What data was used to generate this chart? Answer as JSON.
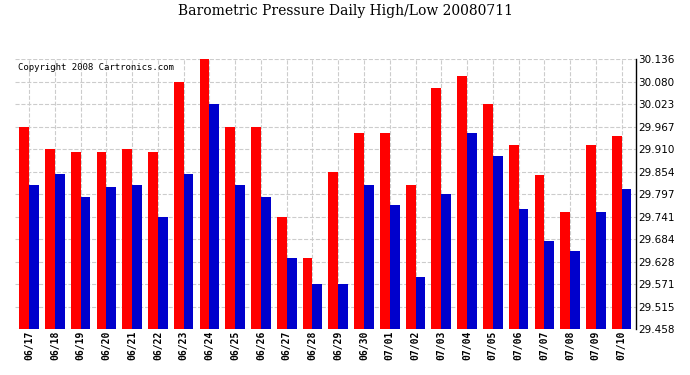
{
  "title": "Barometric Pressure Daily High/Low 20080711",
  "copyright": "Copyright 2008 Cartronics.com",
  "dates": [
    "06/17",
    "06/18",
    "06/19",
    "06/20",
    "06/21",
    "06/22",
    "06/23",
    "06/24",
    "06/25",
    "06/26",
    "06/27",
    "06/28",
    "06/29",
    "06/30",
    "07/01",
    "07/02",
    "07/03",
    "07/04",
    "07/05",
    "07/06",
    "07/07",
    "07/08",
    "07/09",
    "07/10"
  ],
  "highs": [
    29.967,
    29.91,
    29.903,
    29.903,
    29.91,
    29.903,
    30.08,
    30.136,
    29.967,
    29.967,
    29.741,
    29.638,
    29.854,
    29.95,
    29.95,
    29.82,
    30.063,
    30.093,
    30.023,
    29.92,
    29.845,
    29.752,
    29.92,
    29.943
  ],
  "lows": [
    29.82,
    29.847,
    29.79,
    29.815,
    29.82,
    29.741,
    29.847,
    30.023,
    29.82,
    29.79,
    29.638,
    29.571,
    29.571,
    29.82,
    29.771,
    29.59,
    29.797,
    29.95,
    29.892,
    29.76,
    29.679,
    29.654,
    29.752,
    29.81
  ],
  "high_color": "#ff0000",
  "low_color": "#0000cc",
  "background_color": "#ffffff",
  "grid_color": "#cccccc",
  "ymin": 29.458,
  "ymax": 30.136,
  "yticks": [
    29.458,
    29.515,
    29.571,
    29.628,
    29.684,
    29.741,
    29.797,
    29.854,
    29.91,
    29.967,
    30.023,
    30.08,
    30.136
  ],
  "bar_width": 0.38
}
